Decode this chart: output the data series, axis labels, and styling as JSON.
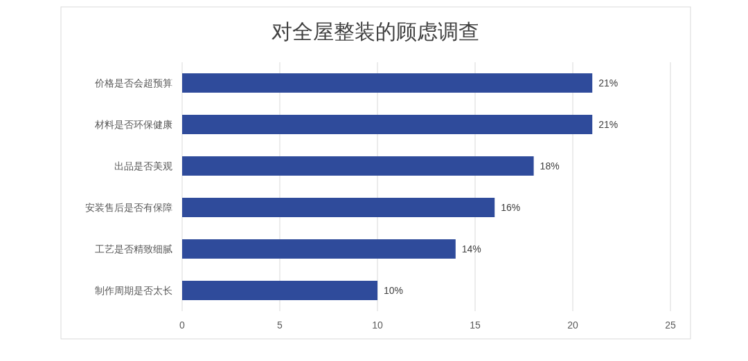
{
  "chart_data": {
    "type": "bar",
    "orientation": "horizontal",
    "title": "对全屋整装的顾虑调查",
    "categories": [
      "价格是否会超预算",
      "材料是否环保健康",
      "出品是否美观",
      "安装售后是否有保障",
      "工艺是否精致细腻",
      "制作周期是否太长"
    ],
    "values": [
      21,
      21,
      18,
      16,
      14,
      10
    ],
    "value_labels": [
      "21%",
      "21%",
      "18%",
      "16%",
      "14%",
      "10%"
    ],
    "color": "#2f4b9b",
    "xlim": [
      0,
      25
    ],
    "xticks": [
      0,
      5,
      10,
      15,
      20,
      25
    ],
    "grid": "x"
  }
}
